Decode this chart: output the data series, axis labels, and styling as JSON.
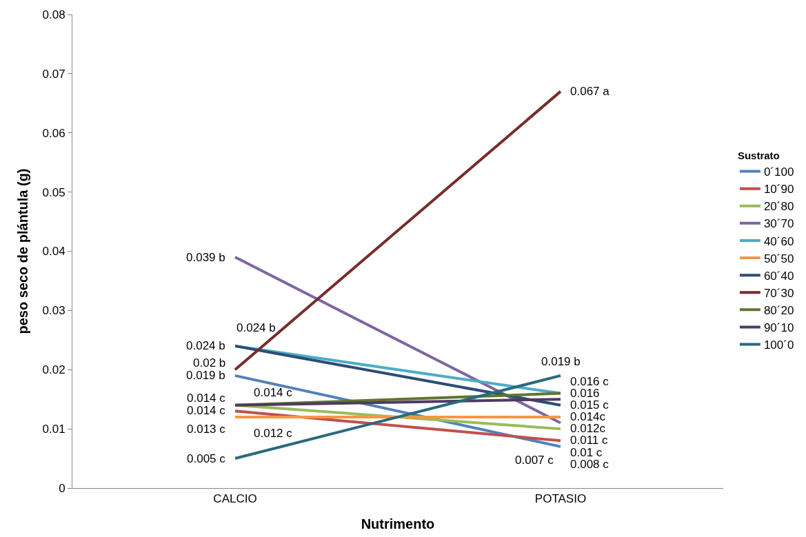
{
  "chart_data": {
    "type": "line",
    "xlabel": "Nutrimento",
    "ylabel": "peso seco de plántula (g)",
    "legend_title": "Sustrato",
    "categories": [
      "CALCIO",
      "POTASIO"
    ],
    "series": [
      {
        "name": "0´100",
        "color": "#4f81bd",
        "values": [
          0.019,
          0.007
        ],
        "value_labels": [
          "0.019 b",
          "0.007 c"
        ]
      },
      {
        "name": "10´90",
        "color": "#c0504d",
        "values": [
          0.013,
          0.008
        ],
        "value_labels": [
          "0.013 c",
          "0.008 c"
        ]
      },
      {
        "name": "20´80",
        "color": "#9bbb59",
        "values": [
          0.014,
          0.01
        ],
        "value_labels": [
          "0.014 c",
          "0.01 c"
        ]
      },
      {
        "name": "30´70",
        "color": "#8064a2",
        "values": [
          0.039,
          0.011
        ],
        "value_labels": [
          "0.039 b",
          "0.011 c"
        ]
      },
      {
        "name": "40´60",
        "color": "#4bacc6",
        "values": [
          0.024,
          0.016
        ],
        "value_labels": [
          "0.024 b",
          "0.016 c"
        ]
      },
      {
        "name": "50´50",
        "color": "#f79646",
        "values": [
          0.012,
          0.012
        ],
        "value_labels": [
          "0.012 c",
          "0.012c"
        ]
      },
      {
        "name": "60´40",
        "color": "#2c4d75",
        "values": [
          0.024,
          0.014
        ],
        "value_labels": [
          "0.024 b",
          "0.014c"
        ]
      },
      {
        "name": "70´30",
        "color": "#772c2a",
        "values": [
          0.02,
          0.067
        ],
        "value_labels": [
          "0.02 b",
          "0.067 a"
        ]
      },
      {
        "name": "80´20",
        "color": "#5f7530",
        "values": [
          0.014,
          0.016
        ],
        "value_labels": [
          "0.014 c",
          "0.016"
        ]
      },
      {
        "name": "90´10",
        "color": "#4d3b62",
        "values": [
          0.014,
          0.015
        ],
        "value_labels": [
          "0.014 c",
          "0.015 c"
        ]
      },
      {
        "name": "100´0",
        "color": "#276a7c",
        "values": [
          0.005,
          0.019
        ],
        "value_labels": [
          "0.005 c",
          "0.019 b"
        ]
      }
    ],
    "ylim": [
      0,
      0.08
    ],
    "yticks": [
      0,
      0.01,
      0.02,
      0.03,
      0.04,
      0.05,
      0.06,
      0.07,
      0.08
    ],
    "legend": "right",
    "marker": "none",
    "line_style": "solid"
  }
}
